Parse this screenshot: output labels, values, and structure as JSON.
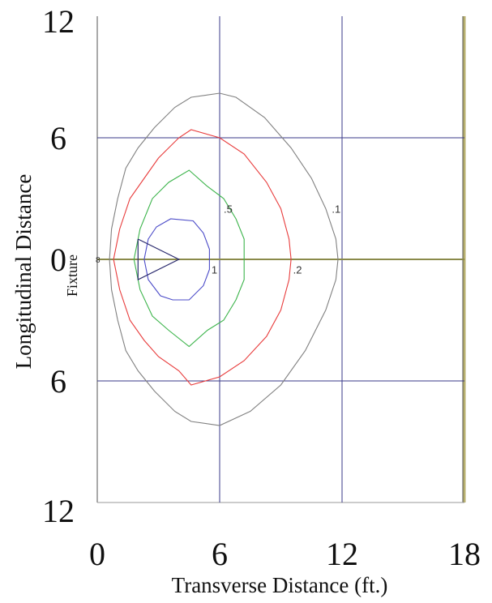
{
  "chart_data": {
    "type": "contour",
    "title": "",
    "xlabel": "Transverse Distance (ft.)",
    "ylabel": "Longitudinal Distance",
    "fixture_label": "Fixture",
    "xlim": [
      0,
      18
    ],
    "ylim": [
      -12,
      12
    ],
    "x_ticks": [
      {
        "value": 0,
        "label": "0"
      },
      {
        "value": 6,
        "label": "6"
      },
      {
        "value": 12,
        "label": "12"
      },
      {
        "value": 18,
        "label": "18"
      }
    ],
    "y_ticks": [
      {
        "value": 12,
        "label": "12"
      },
      {
        "value": 6,
        "label": "6"
      },
      {
        "value": 0,
        "label": "0"
      },
      {
        "value": -6,
        "label": "6"
      },
      {
        "value": -12,
        "label": "12"
      }
    ],
    "grid": true,
    "series": [
      {
        "name": ".1",
        "color": "#808080",
        "label": {
          "text": ".1",
          "x": 11.5,
          "y": 2.5
        },
        "points": [
          [
            0.6,
            0
          ],
          [
            0.7,
            -1.5
          ],
          [
            1.0,
            -3
          ],
          [
            1.4,
            -4.5
          ],
          [
            2.0,
            -5.5
          ],
          [
            2.8,
            -6.5
          ],
          [
            3.8,
            -7.5
          ],
          [
            4.6,
            -8.0
          ],
          [
            6.0,
            -8.2
          ],
          [
            7.5,
            -7.5
          ],
          [
            9.0,
            -6.2
          ],
          [
            10.2,
            -4.5
          ],
          [
            11.2,
            -2.5
          ],
          [
            11.7,
            -1.0
          ],
          [
            11.8,
            0
          ],
          [
            11.7,
            1.0
          ],
          [
            11.2,
            2.5
          ],
          [
            10.5,
            4.0
          ],
          [
            9.5,
            5.5
          ],
          [
            8.2,
            7.0
          ],
          [
            6.8,
            8.0
          ],
          [
            6.0,
            8.2
          ],
          [
            4.6,
            8.0
          ],
          [
            3.8,
            7.5
          ],
          [
            2.8,
            6.5
          ],
          [
            2.0,
            5.5
          ],
          [
            1.4,
            4.5
          ],
          [
            1.0,
            3.0
          ],
          [
            0.7,
            1.5
          ],
          [
            0.6,
            0
          ]
        ]
      },
      {
        "name": ".2",
        "color": "#e83c3c",
        "label": {
          "text": ".2",
          "x": 9.6,
          "y": -0.5
        },
        "points": [
          [
            0.8,
            0
          ],
          [
            1.1,
            -1.5
          ],
          [
            1.6,
            -3
          ],
          [
            2.3,
            -4
          ],
          [
            3.0,
            -4.8
          ],
          [
            4.0,
            -5.5
          ],
          [
            4.6,
            -6.2
          ],
          [
            6.0,
            -5.8
          ],
          [
            7.2,
            -5.0
          ],
          [
            8.3,
            -3.8
          ],
          [
            9.0,
            -2.5
          ],
          [
            9.4,
            -1.0
          ],
          [
            9.5,
            0
          ],
          [
            9.4,
            1.0
          ],
          [
            9.0,
            2.5
          ],
          [
            8.3,
            3.8
          ],
          [
            7.2,
            5.2
          ],
          [
            6.0,
            6.0
          ],
          [
            4.6,
            6.4
          ],
          [
            4.0,
            6.0
          ],
          [
            3.0,
            5.0
          ],
          [
            2.3,
            4.0
          ],
          [
            1.6,
            3.0
          ],
          [
            1.1,
            1.5
          ],
          [
            0.8,
            0
          ]
        ]
      },
      {
        "name": ".5",
        "color": "#3cb44b",
        "label": {
          "text": ".5",
          "x": 6.2,
          "y": 2.5
        },
        "points": [
          [
            1.8,
            0
          ],
          [
            2.1,
            -1.5
          ],
          [
            2.7,
            -2.8
          ],
          [
            3.5,
            -3.5
          ],
          [
            4.5,
            -4.3
          ],
          [
            5.4,
            -3.5
          ],
          [
            6.2,
            -3.0
          ],
          [
            6.8,
            -2.0
          ],
          [
            7.2,
            -1.0
          ],
          [
            7.2,
            0
          ],
          [
            7.2,
            1.0
          ],
          [
            6.8,
            2.0
          ],
          [
            6.2,
            3.0
          ],
          [
            5.4,
            3.6
          ],
          [
            4.5,
            4.4
          ],
          [
            3.5,
            3.8
          ],
          [
            2.7,
            3.0
          ],
          [
            2.1,
            1.5
          ],
          [
            1.8,
            0
          ]
        ]
      },
      {
        "name": "1",
        "color": "#4b4bc8",
        "label": {
          "text": "1",
          "x": 5.6,
          "y": -0.5
        },
        "points": [
          [
            2.3,
            0
          ],
          [
            2.5,
            -1.0
          ],
          [
            3.1,
            -1.8
          ],
          [
            3.7,
            -2.0
          ],
          [
            4.5,
            -2.0
          ],
          [
            5.2,
            -1.3
          ],
          [
            5.5,
            -0.5
          ],
          [
            5.5,
            0.5
          ],
          [
            5.2,
            1.3
          ],
          [
            4.7,
            1.9
          ],
          [
            3.6,
            2.0
          ],
          [
            2.9,
            1.6
          ],
          [
            2.5,
            1.0
          ],
          [
            2.3,
            0
          ]
        ]
      }
    ],
    "fixture_marker": {
      "color": "#2a2a6e",
      "points": [
        [
          2.0,
          1.0
        ],
        [
          4.0,
          0
        ],
        [
          2.0,
          -1.0
        ],
        [
          2.0,
          1.0
        ]
      ],
      "edge_label": {
        "text": "8",
        "x": 0.0,
        "y": 0
      }
    },
    "plot_border_color": "#b8b070",
    "grid_color": "#3a3a8a"
  }
}
